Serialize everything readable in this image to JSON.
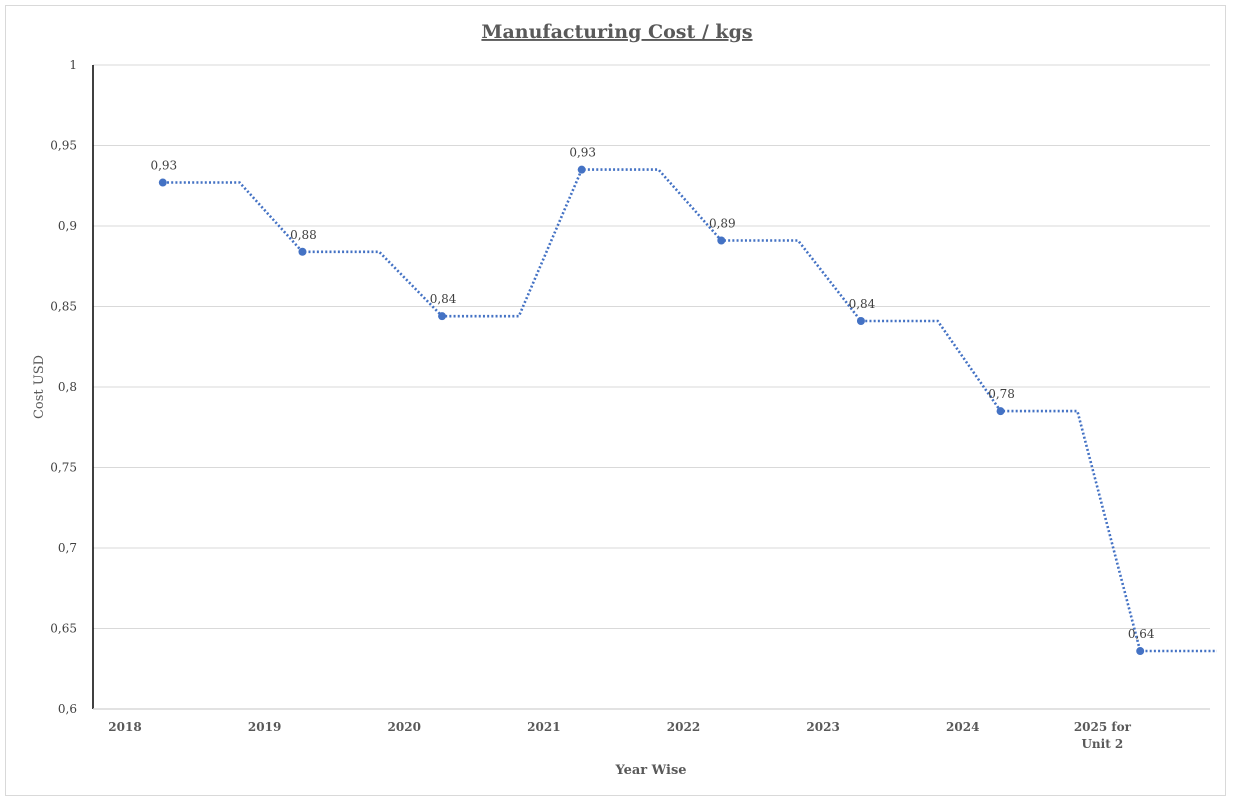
{
  "chart_data": {
    "type": "line",
    "title": "Manufacturing Cost / kgs",
    "xlabel": "Year Wise",
    "ylabel": "Cost  USD",
    "categories": [
      "2018",
      "2019",
      "2020",
      "2021",
      "2022",
      "2023",
      "2024",
      "2025 for Unit 2"
    ],
    "category_lines": [
      [
        "2018"
      ],
      [
        "2019"
      ],
      [
        "2020"
      ],
      [
        "2021"
      ],
      [
        "2022"
      ],
      [
        "2023"
      ],
      [
        "2024"
      ],
      [
        "2025 for",
        "Unit 2"
      ]
    ],
    "values": [
      0.927,
      0.884,
      0.844,
      0.935,
      0.891,
      0.841,
      0.785,
      0.636
    ],
    "data_labels": [
      "0,93",
      "0,88",
      "0,84",
      "0,93",
      "0,89",
      "0,84",
      "0,78",
      "0,64"
    ],
    "ylim": [
      0.6,
      1.0
    ],
    "yticks": [
      0.6,
      0.65,
      0.7,
      0.75,
      0.8,
      0.85,
      0.9,
      0.95,
      1.0
    ],
    "ytick_labels": [
      "0,6",
      "0,65",
      "0,7",
      "0,75",
      "0,8",
      "0,85",
      "0,9",
      "0,95",
      "1"
    ],
    "grid": true,
    "legend": "none",
    "line_style": "dotted step",
    "colors": {
      "series": "#4472c4",
      "grid": "#d9d9d9",
      "axis": "#000000",
      "text": "#595959"
    }
  }
}
